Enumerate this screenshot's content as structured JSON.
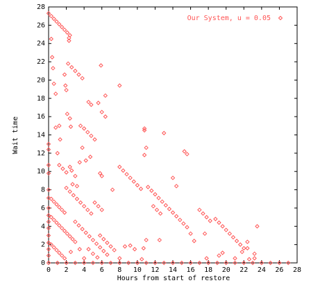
{
  "chart_data": {
    "type": "scatter",
    "xlabel": "Hours from start of restore",
    "ylabel": "Wait time",
    "xlim": [
      0,
      28
    ],
    "ylim": [
      0,
      28
    ],
    "xticks": [
      0,
      2,
      4,
      6,
      8,
      10,
      12,
      14,
      16,
      18,
      20,
      22,
      24,
      26,
      28
    ],
    "yticks": [
      0,
      2,
      4,
      6,
      8,
      10,
      12,
      14,
      16,
      18,
      20,
      22,
      24,
      26,
      28
    ],
    "legend": "top-right",
    "series": [
      {
        "name": "Our System, u = 0.05",
        "color": "#ff5555",
        "x": [
          0,
          0.3,
          0.6,
          0.9,
          1.2,
          1.5,
          1.8,
          2.1,
          2.4,
          2.3,
          2.3,
          0.3,
          0.4,
          0.5,
          0.6,
          0.8,
          2.2,
          2.6,
          3,
          3.4,
          3.8,
          1.8,
          1.9,
          2,
          2.1,
          2.4,
          2.5,
          3.6,
          4,
          4.4,
          4.8,
          5.2,
          4.5,
          4.8,
          5.9,
          6.4,
          5.6,
          6,
          6.4,
          8,
          10.8,
          10.8,
          11,
          10.8,
          13,
          15.3,
          15.6,
          14.4,
          14,
          8,
          8.4,
          8.8,
          9.2,
          9.6,
          10,
          10.4,
          7.2,
          11.2,
          11.6,
          12,
          12.4,
          12.8,
          13.2,
          13.6,
          14,
          14.4,
          14.8,
          15.2,
          15.6,
          16,
          16.4,
          11.8,
          12.2,
          12.6,
          17,
          17.4,
          17.8,
          18.2,
          17.6,
          18.8,
          19.2,
          19.6,
          20,
          20.4,
          20.8,
          21.2,
          21.6,
          22,
          19.6,
          22.4,
          22.4,
          21.8,
          23.5,
          23.2,
          23.2,
          22.6,
          0,
          0,
          0,
          0,
          0,
          0,
          0,
          0,
          0,
          0,
          0,
          0,
          0,
          0,
          0.3,
          0.6,
          0.9,
          1.2,
          1.5,
          1.8,
          0.3,
          0.6,
          0.9,
          1.2,
          1.5,
          1.8,
          2.1,
          2.4,
          2.7,
          3,
          0.3,
          0.6,
          0.9,
          1.2,
          1.5,
          1.8,
          2,
          2.4,
          2.8,
          3.2,
          3.6,
          4,
          4.4,
          4.8,
          1.2,
          1.6,
          2,
          1,
          1.3,
          1.2,
          0.8,
          2.4,
          2.6,
          3,
          3.2,
          2.7,
          3,
          3.4,
          3.8,
          4.2,
          4.6,
          5,
          5.4,
          5.8,
          6.2,
          6.6,
          4.5,
          5,
          5.5,
          3.5,
          2.5,
          4,
          5.8,
          6.2,
          6.6,
          7,
          7.4,
          5.2,
          5.6,
          6,
          5.8,
          6,
          4.2,
          3.5,
          3.8,
          4.7,
          8.6,
          9.2,
          9.7,
          10.7,
          8,
          10.5,
          11,
          12.5,
          17.8,
          21,
          19.2,
          0,
          1,
          2,
          3,
          4,
          5,
          6,
          7,
          8,
          9,
          10,
          11,
          12,
          13,
          14,
          15,
          16,
          17,
          18,
          19,
          20,
          21,
          22,
          23,
          24,
          25,
          26,
          27
        ],
        "values": [
          27.3,
          27,
          26.7,
          26.4,
          26.1,
          25.8,
          25.5,
          25.2,
          24.9,
          24.3,
          24.6,
          24.5,
          22.5,
          21.3,
          19.6,
          18.5,
          21.8,
          21.4,
          21,
          20.6,
          20.2,
          20.6,
          19.4,
          18.9,
          16.3,
          15.8,
          14.9,
          15,
          14.7,
          14.3,
          13.9,
          13.5,
          17.6,
          17.3,
          21.6,
          18.3,
          17.5,
          16.5,
          16,
          19.4,
          14.7,
          14.5,
          12.6,
          11.8,
          14.2,
          12.2,
          11.9,
          8.4,
          9.3,
          10.5,
          10.1,
          9.7,
          9.3,
          8.9,
          8.5,
          8.1,
          8,
          8.3,
          7.9,
          7.5,
          7.1,
          6.7,
          6.3,
          5.9,
          5.5,
          5.1,
          4.7,
          4.3,
          3.9,
          3.2,
          2.4,
          6.2,
          5.8,
          5.4,
          5.8,
          5.4,
          5,
          4.6,
          3.2,
          4.8,
          4.4,
          4,
          3.6,
          3.2,
          2.8,
          2.4,
          2,
          1.6,
          1.1,
          2.3,
          1.6,
          1.2,
          4,
          1,
          0.5,
          0.4,
          13,
          12.4,
          10.7,
          9.8,
          8,
          7.1,
          6,
          5.2,
          4.5,
          3.8,
          3,
          2.2,
          1.5,
          0.8,
          7,
          6.7,
          6.4,
          6.1,
          5.8,
          5.5,
          5,
          4.7,
          4.4,
          4.1,
          3.8,
          3.5,
          3.2,
          2.9,
          2.6,
          2.3,
          2,
          1.7,
          1.4,
          1.1,
          0.8,
          0.5,
          8.2,
          7.8,
          7.4,
          7,
          6.6,
          6.2,
          5.8,
          5.4,
          10.7,
          10.3,
          9.9,
          12,
          13.5,
          15,
          14.8,
          10.5,
          10.1,
          9.5,
          8.4,
          8.6,
          4.5,
          4.1,
          3.7,
          3.3,
          2.9,
          2.5,
          2.1,
          1.7,
          1.3,
          0.9,
          1.5,
          1,
          0.6,
          1.5,
          1.2,
          0.5,
          3,
          2.6,
          2.2,
          1.8,
          1.4,
          6.6,
          6.2,
          5.8,
          9.8,
          9.5,
          11.2,
          11,
          12.6,
          11.6,
          1.8,
          1.9,
          1.5,
          1.6,
          0.5,
          0.4,
          2.5,
          2.5,
          0.5,
          0.5,
          0.8,
          0,
          0,
          0,
          0,
          0,
          0,
          0,
          0,
          0,
          0,
          0,
          0,
          0,
          0,
          0,
          0,
          0,
          0,
          0,
          0,
          0,
          0,
          0,
          0,
          0,
          0,
          0,
          0
        ]
      }
    ]
  }
}
